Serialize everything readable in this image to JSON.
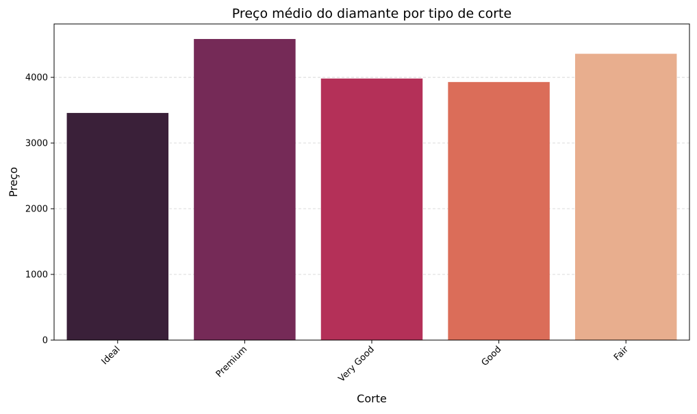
{
  "chart_data": {
    "type": "bar",
    "title": "Preço médio do diamante por tipo de corte",
    "xlabel": "Corte",
    "ylabel": "Preço",
    "categories": [
      "Ideal",
      "Premium",
      "Very Good",
      "Good",
      "Fair"
    ],
    "values": [
      3458,
      4584,
      3982,
      3929,
      4359
    ],
    "colors": [
      "#3a2039",
      "#752a57",
      "#b43058",
      "#db6d59",
      "#e8ae8e"
    ],
    "ylim": [
      0,
      4813
    ],
    "yticks": [
      0,
      1000,
      2000,
      3000,
      4000
    ],
    "grid": true,
    "legend": "none"
  }
}
